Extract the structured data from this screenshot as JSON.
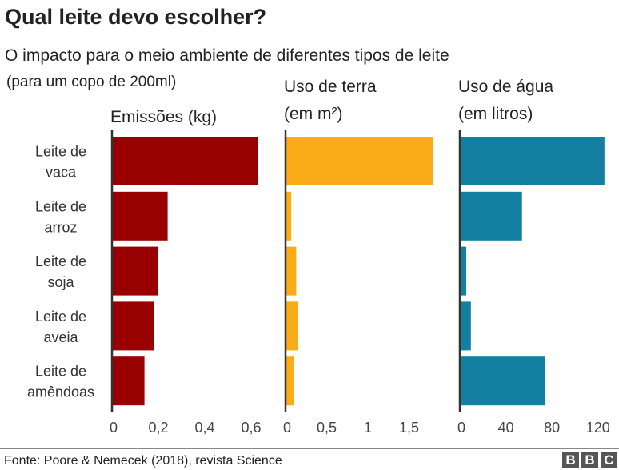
{
  "title": "Qual leite devo escolher?",
  "subtitle": "O impacto para o meio ambiente de diferentes tipos de leite",
  "note": "(para um copo de 200ml)",
  "source": "Fonte: Poore & Nemecek (2018), revista Science",
  "logo": "BBC",
  "chart_data": {
    "type": "bar",
    "orientation": "horizontal",
    "categories": [
      [
        "Leite de",
        "vaca"
      ],
      [
        "Leite de",
        "arroz"
      ],
      [
        "Leite de",
        "soja"
      ],
      [
        "Leite de",
        "aveia"
      ],
      [
        "Leite de",
        "amêndoas"
      ]
    ],
    "panels": [
      {
        "title": [
          "Emissões (kg)"
        ],
        "color": "#990000",
        "values": [
          0.63,
          0.24,
          0.2,
          0.18,
          0.14
        ],
        "xlim": [
          0,
          0.65
        ],
        "ticks": [
          0,
          0.2,
          0.4,
          0.6
        ],
        "tick_labels": [
          "0",
          "0,2",
          "0,4",
          "0,6"
        ]
      },
      {
        "title": [
          "Uso de terra",
          "(em m²)"
        ],
        "color": "#FAAB18",
        "values": [
          1.79,
          0.07,
          0.13,
          0.15,
          0.1
        ],
        "xlim": [
          0,
          1.8
        ],
        "ticks": [
          0,
          0.5,
          1,
          1.5
        ],
        "tick_labels": [
          "0",
          "0,5",
          "1",
          "1,5"
        ]
      },
      {
        "title": [
          "Uso de água",
          "(em litros)"
        ],
        "color": "#1380A1",
        "values": [
          125.6,
          54,
          5.6,
          9.6,
          74.2
        ],
        "xlim": [
          0,
          127
        ],
        "ticks": [
          0,
          40,
          80,
          120
        ],
        "tick_labels": [
          "0",
          "40",
          "80",
          "120"
        ]
      }
    ],
    "grid": false,
    "legend": "none"
  }
}
